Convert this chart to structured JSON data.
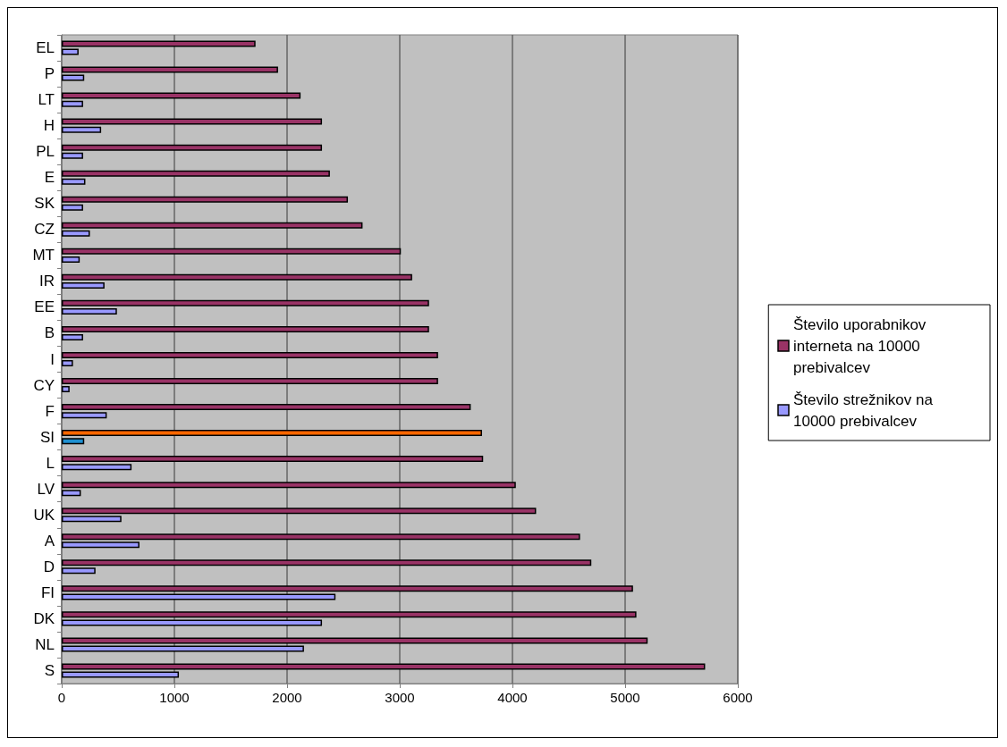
{
  "chart_data": {
    "type": "bar",
    "orientation": "horizontal",
    "categories": [
      "EL",
      "P",
      "LT",
      "H",
      "PL",
      "E",
      "SK",
      "CZ",
      "MT",
      "IR",
      "EE",
      "B",
      "I",
      "CY",
      "F",
      "SI",
      "L",
      "LV",
      "UK",
      "A",
      "D",
      "FI",
      "DK",
      "NL",
      "S"
    ],
    "series": [
      {
        "name": "Število uporabnikov interneta na 10000 prebivalcev",
        "color": "#993366",
        "colors": [
          "#993366",
          "#993366",
          "#993366",
          "#993366",
          "#993366",
          "#993366",
          "#993366",
          "#993366",
          "#993366",
          "#993366",
          "#993366",
          "#993366",
          "#993366",
          "#993366",
          "#993366",
          "#ff6600",
          "#993366",
          "#993366",
          "#993366",
          "#993366",
          "#993366",
          "#993366",
          "#993366",
          "#993366",
          "#993366"
        ],
        "values": [
          1720,
          1920,
          2120,
          2310,
          2310,
          2380,
          2540,
          2670,
          3010,
          3110,
          3260,
          3260,
          3340,
          3340,
          3630,
          3730,
          3740,
          4030,
          4210,
          4600,
          4700,
          5070,
          5100,
          5200,
          5710
        ]
      },
      {
        "name": "Število strežnikov na 10000 prebivalcev",
        "color": "#9999ff",
        "colors": [
          "#9999ff",
          "#9999ff",
          "#9999ff",
          "#9999ff",
          "#9999ff",
          "#9999ff",
          "#9999ff",
          "#9999ff",
          "#9999ff",
          "#9999ff",
          "#9999ff",
          "#9999ff",
          "#9999ff",
          "#9999ff",
          "#9999ff",
          "#1e8fd0",
          "#9999ff",
          "#9999ff",
          "#9999ff",
          "#9999ff",
          "#9999ff",
          "#9999ff",
          "#9999ff",
          "#9999ff",
          "#9999ff"
        ],
        "values": [
          150,
          200,
          190,
          350,
          190,
          210,
          190,
          250,
          160,
          380,
          490,
          190,
          100,
          70,
          400,
          200,
          620,
          170,
          530,
          690,
          300,
          2430,
          2310,
          2150,
          1040
        ]
      }
    ],
    "xlim": [
      0,
      6000
    ],
    "xticks": [
      0,
      1000,
      2000,
      3000,
      4000,
      5000,
      6000
    ],
    "grid": "x",
    "legend": "right"
  }
}
